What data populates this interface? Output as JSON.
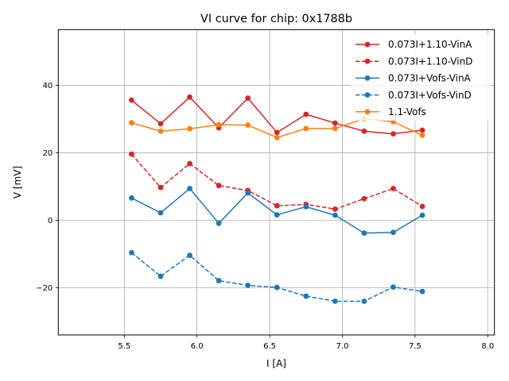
{
  "chart_data": {
    "type": "line",
    "title": "VI curve for chip: 0x1788b",
    "xlabel": "I [A]",
    "ylabel": "V [mV]",
    "xlim": [
      5.046,
      8.046
    ],
    "ylim": [
      -34.0,
      56.5
    ],
    "xticks": [
      5.5,
      6.0,
      6.5,
      7.0,
      7.5,
      8.0
    ],
    "xtick_labels": [
      "5.5",
      "6.0",
      "6.5",
      "7.0",
      "7.5",
      "8.0"
    ],
    "yticks": [
      -20,
      0,
      20,
      40
    ],
    "ytick_labels": [
      "−20",
      "0",
      "20",
      "40"
    ],
    "grid": true,
    "legend_position": "top-right",
    "x": [
      5.55,
      5.75,
      5.95,
      6.15,
      6.35,
      6.55,
      6.75,
      6.95,
      7.15,
      7.35,
      7.55
    ],
    "series": [
      {
        "name": "0.073I+1.10-VinA",
        "color": "#d62728",
        "dashed": false,
        "values": [
          35.6,
          28.6,
          36.5,
          27.4,
          36.2,
          26.0,
          31.4,
          28.8,
          26.4,
          25.6,
          26.7
        ]
      },
      {
        "name": "0.073I+1.10-VinD",
        "color": "#d62728",
        "dashed": true,
        "values": [
          19.6,
          9.7,
          16.8,
          10.3,
          8.8,
          4.3,
          4.7,
          3.3,
          6.4,
          9.4,
          4.1
        ]
      },
      {
        "name": "0.073I+Vofs-VinA",
        "color": "#1f77b4",
        "dashed": false,
        "values": [
          6.6,
          2.2,
          9.4,
          -0.9,
          8.1,
          1.6,
          4.0,
          1.5,
          -3.8,
          -3.6,
          1.5
        ]
      },
      {
        "name": "0.073I+Vofs-VinD",
        "color": "#1f77b4",
        "dashed": true,
        "values": [
          -9.6,
          -16.6,
          -10.4,
          -17.9,
          -19.3,
          -19.9,
          -22.5,
          -24.0,
          -24.0,
          -19.8,
          -21.1
        ]
      },
      {
        "name": "1.1-Vofs",
        "color": "#ff7f0e",
        "dashed": false,
        "values": [
          28.9,
          26.4,
          27.1,
          28.3,
          28.2,
          24.5,
          27.2,
          27.2,
          30.1,
          29.2,
          25.2
        ]
      }
    ]
  }
}
